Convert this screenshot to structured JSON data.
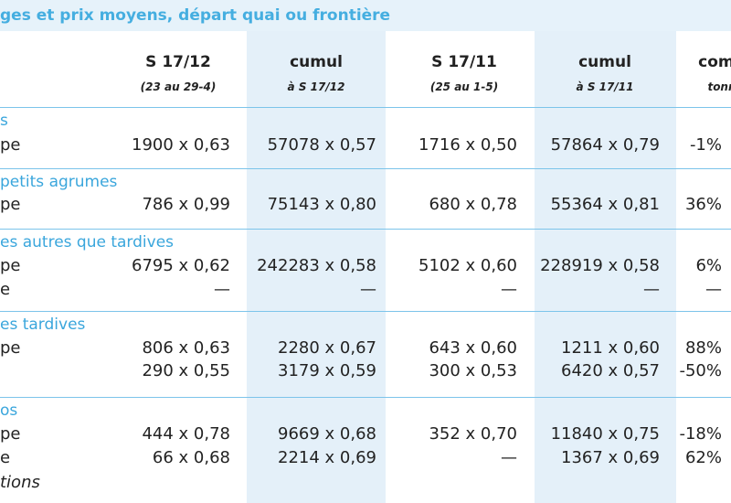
{
  "title": "ges et prix moyens, départ quai ou frontière",
  "columns": [
    {
      "line1": "S 17/12",
      "line2": "(23 au 29-4)"
    },
    {
      "line1": "cumul",
      "line2": "à S 17/12"
    },
    {
      "line1": "S 17/11",
      "line2": "(25 au 1-5)"
    },
    {
      "line1": "cumul",
      "line2": "à S 17/11"
    },
    {
      "line1": "comp",
      "line2": "tonn"
    }
  ],
  "sections": [
    {
      "heading": "s",
      "rows": [
        {
          "label": "pe",
          "cells": [
            "1900 x 0,63",
            "57078 x 0,57",
            "1716 x 0,50",
            "57864 x 0,79",
            "-1%"
          ]
        }
      ]
    },
    {
      "heading": "petits agrumes",
      "rows": [
        {
          "label": "pe",
          "cells": [
            "786 x 0,99",
            "75143 x 0,80",
            "680 x 0,78",
            "55364 x 0,81",
            "36%"
          ]
        }
      ]
    },
    {
      "heading": "es autres que tardives",
      "rows": [
        {
          "label": "pe",
          "cells": [
            "6795 x 0,62",
            "242283 x 0,58",
            "5102 x 0,60",
            "228919 x 0,58",
            "6%"
          ]
        },
        {
          "label": "e",
          "cells": [
            "—",
            "—",
            "—",
            "—",
            "—"
          ]
        }
      ]
    },
    {
      "heading": "es tardives",
      "rows": [
        {
          "label": "pe",
          "cells": [
            "806 x 0,63",
            "2280 x 0,67",
            "643 x 0,60",
            "1211 x 0,60",
            "88%"
          ]
        },
        {
          "cells": [
            "290 x 0,55",
            "3179 x 0,59",
            "300 x 0,53",
            "6420 x 0,57",
            "-50%"
          ]
        }
      ]
    },
    {
      "heading": "os",
      "rows": [
        {
          "label": "pe",
          "cells": [
            "444 x 0,78",
            "9669 x 0,68",
            "352 x 0,70",
            "11840 x 0,75",
            "-18%"
          ]
        },
        {
          "label": "e",
          "cells": [
            "66 x 0,68",
            "2214 x 0,69",
            "—",
            "1367 x 0,69",
            "62%"
          ]
        },
        {
          "label": "tions",
          "italic": true
        }
      ]
    }
  ]
}
